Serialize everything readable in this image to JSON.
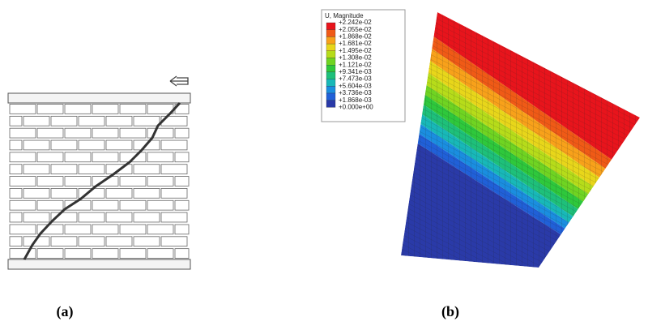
{
  "legend": {
    "title": "U, Magnitude",
    "labels": [
      "+2.242e-02",
      "+2.055e-02",
      "+1.868e-02",
      "+1.681e-02",
      "+1.495e-02",
      "+1.308e-02",
      "+1.121e-02",
      "+9.341e-03",
      "+7.473e-03",
      "+5.604e-03",
      "+3.736e-03",
      "+1.868e-03",
      "+0.000e+00"
    ]
  },
  "captions": {
    "a": "(a)",
    "b": "(b)"
  }
}
